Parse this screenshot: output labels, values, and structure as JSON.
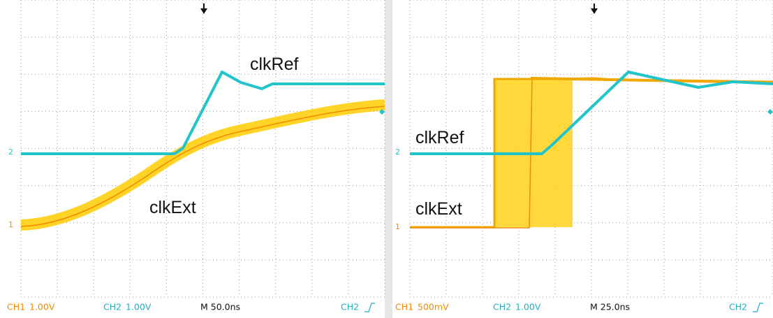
{
  "panels": [
    {
      "labels": {
        "clk_ref": "clkRef",
        "clk_ext": "clkExt"
      },
      "markers": {
        "ch2": "2",
        "ch1": "1"
      },
      "status": {
        "ch1": "CH1",
        "ch1_scale": "1.00V",
        "ch2": "CH2",
        "ch2_scale": "1.00V",
        "timebase": "M 50.0ns",
        "trigger": "CH2"
      }
    },
    {
      "labels": {
        "clk_ref": "clkRef",
        "clk_ext": "clkExt"
      },
      "markers": {
        "ch2": "2",
        "ch1": "1"
      },
      "status": {
        "ch1": "CH1",
        "ch1_scale": "500mV",
        "ch2": "CH2",
        "ch2_scale": "1.00V",
        "timebase": "M 25.0ns",
        "trigger": "CH2"
      }
    }
  ]
}
